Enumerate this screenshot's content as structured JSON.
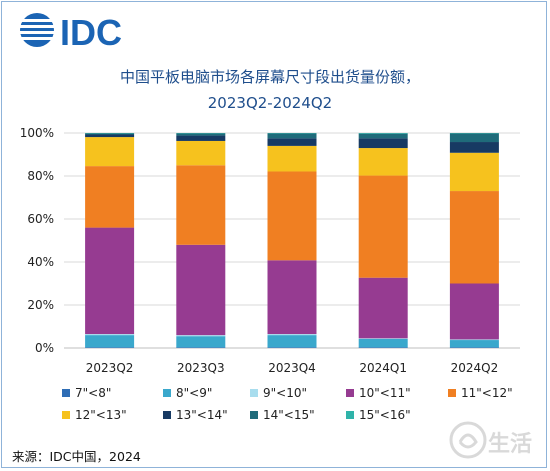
{
  "brand": {
    "logo_text": "IDC",
    "color": "#1b64b4"
  },
  "chart_data": {
    "type": "bar",
    "stacked": true,
    "title": "中国平板电脑市场各屏幕尺寸段出货量份额，",
    "subtitle": "2023Q2-2024Q2",
    "categories": [
      "2023Q2",
      "2023Q3",
      "2023Q4",
      "2024Q1",
      "2024Q2"
    ],
    "ylim": [
      0,
      100
    ],
    "yticks": [
      "0%",
      "20%",
      "40%",
      "60%",
      "80%",
      "100%"
    ],
    "grid": true,
    "legend_position": "bottom",
    "series": [
      {
        "name": "7\"<8\"",
        "color": "#2e6db5",
        "values": [
          0.3,
          0.3,
          0.3,
          0.3,
          0.3
        ]
      },
      {
        "name": "8\"<9\"",
        "color": "#3aa8cc",
        "values": [
          5.7,
          5.2,
          5.7,
          3.9,
          3.4
        ]
      },
      {
        "name": "9\"<10\"",
        "color": "#a8ddee",
        "values": [
          0.5,
          0.5,
          0.5,
          0.3,
          0.3
        ]
      },
      {
        "name": "10\"<11\"",
        "color": "#963b91",
        "values": [
          49.5,
          42.0,
          34.3,
          28.2,
          26.0
        ]
      },
      {
        "name": "11\"<12\"",
        "color": "#f07f22",
        "values": [
          28.6,
          37.0,
          41.3,
          47.5,
          43.0
        ]
      },
      {
        "name": "12\"<13\"",
        "color": "#f6c21e",
        "values": [
          13.5,
          11.3,
          11.9,
          12.8,
          17.8
        ]
      },
      {
        "name": "13\"<14\"",
        "color": "#173a63",
        "values": [
          1.2,
          2.5,
          3.5,
          4.5,
          5.0
        ]
      },
      {
        "name": "14\"<15\"",
        "color": "#1f6b7a",
        "values": [
          0.5,
          1.0,
          2.3,
          2.2,
          4.0
        ]
      },
      {
        "name": "15\"<16\"",
        "color": "#2fb3a9",
        "values": [
          0.2,
          0.2,
          0.2,
          0.3,
          0.2
        ]
      }
    ]
  },
  "source": "来源：IDC中国，2024",
  "watermark": "生活"
}
